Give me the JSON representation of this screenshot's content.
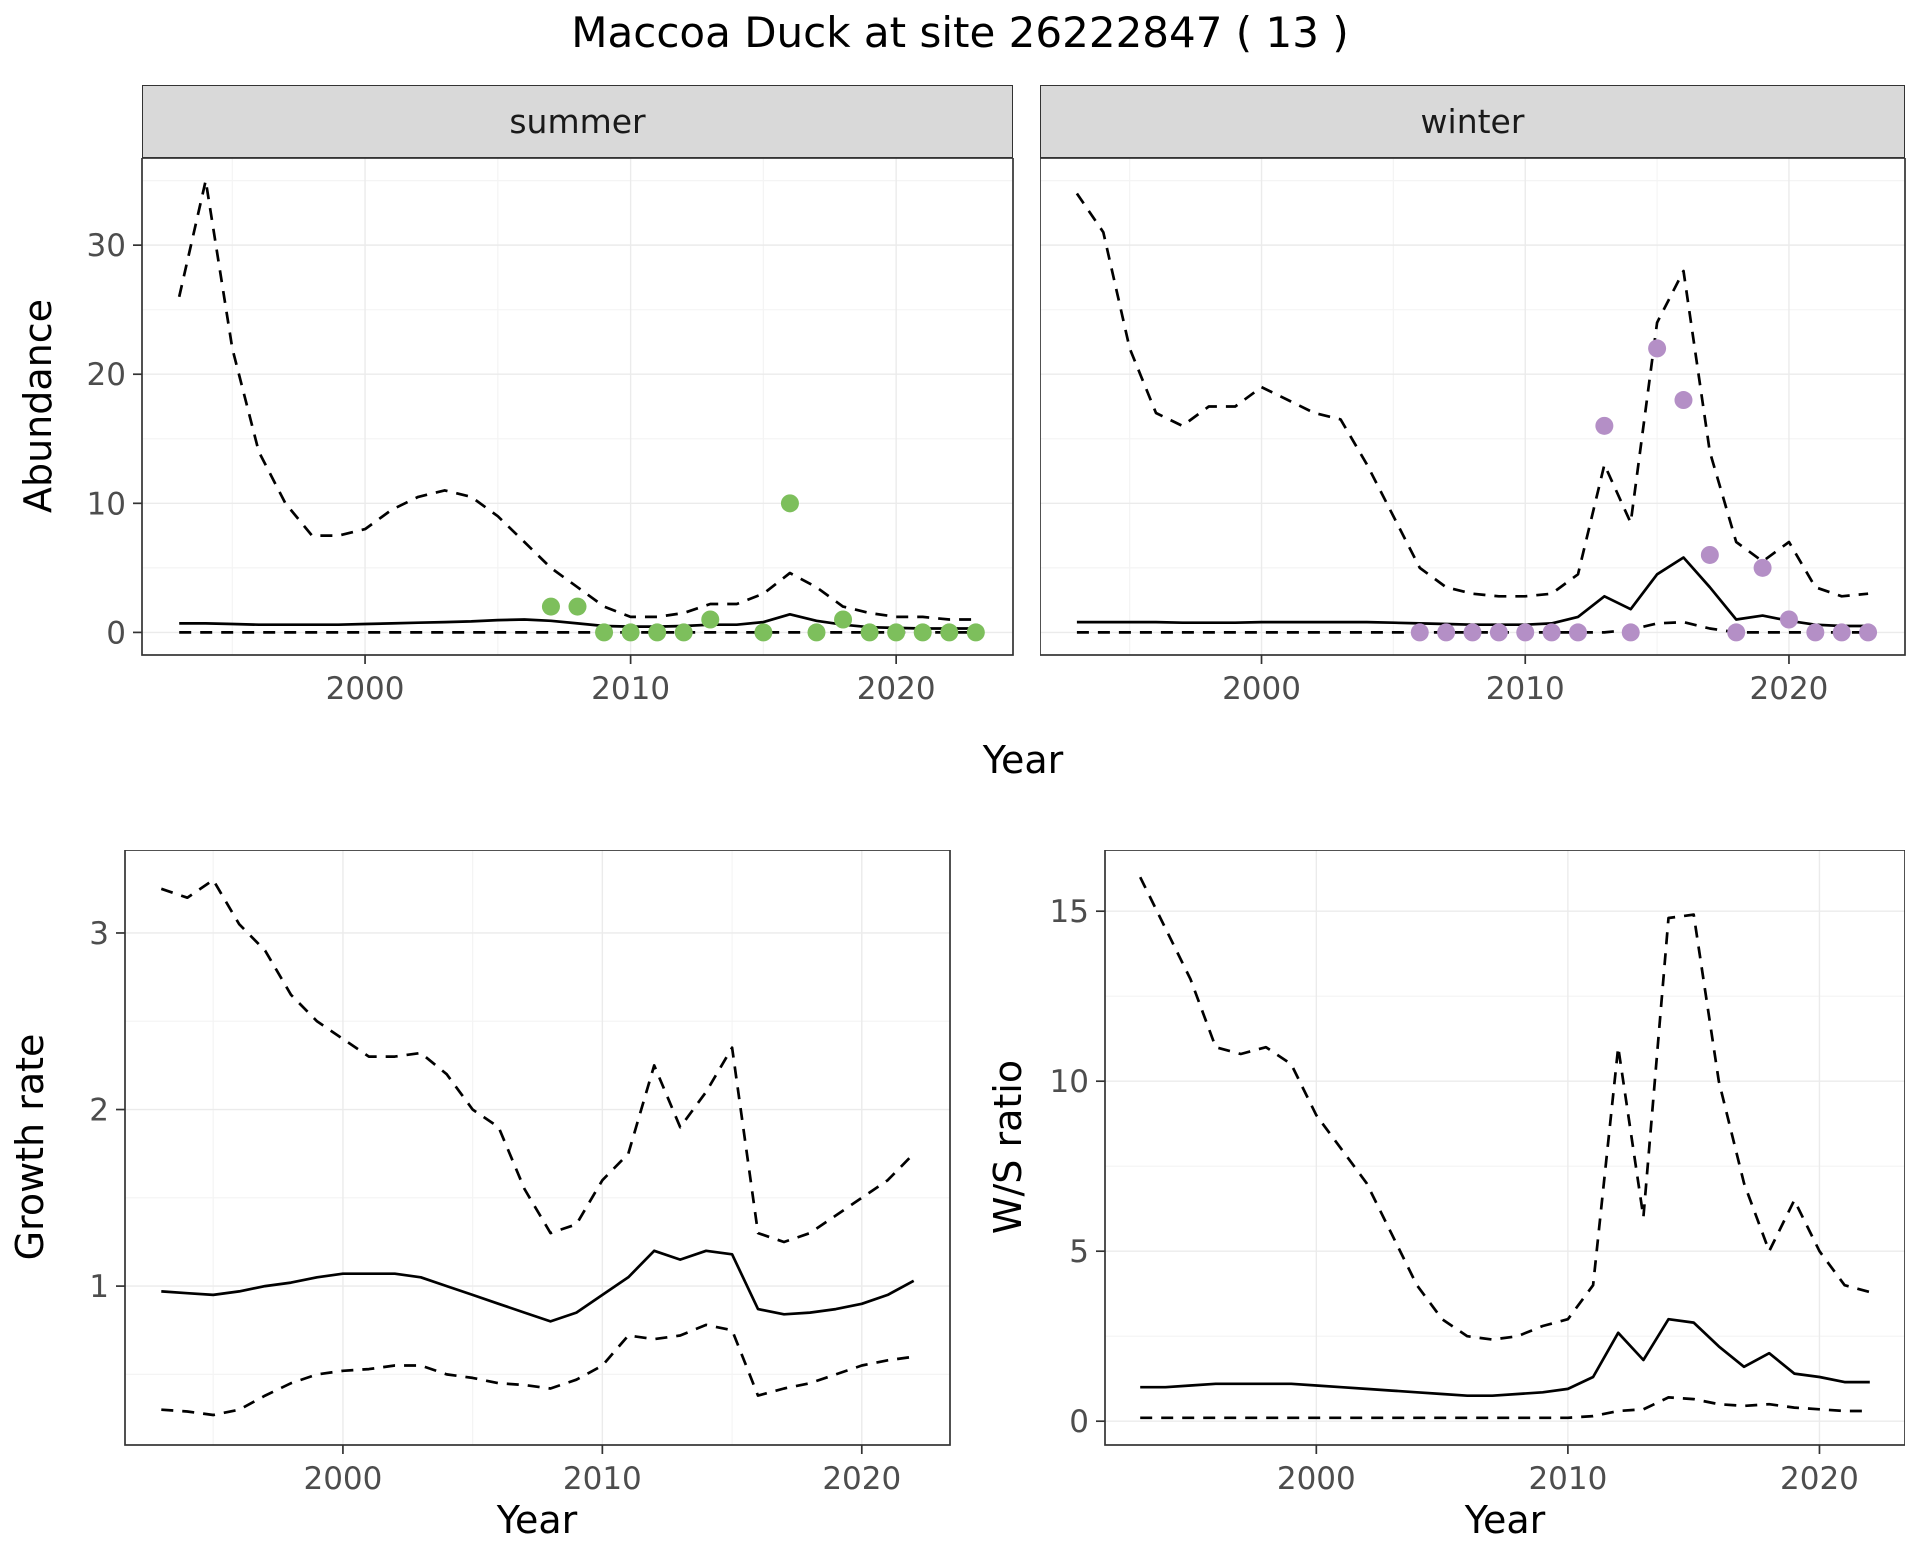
{
  "title": "Maccoa Duck at site 26222847 ( 13 )",
  "colors": {
    "summer_points": "#7dbf5c",
    "winter_points": "#b48fc6",
    "line": "#000000",
    "grid_major": "#ebebeb",
    "grid_minor": "#f4f4f4",
    "panel_border": "#333333",
    "tick_text": "#4d4d4d",
    "strip_bg": "#d9d9d9"
  },
  "top": {
    "ylabel": "Abundance",
    "xlabel": "Year",
    "facets": [
      {
        "label": "summer"
      },
      {
        "label": "winter"
      }
    ]
  },
  "bottom_left": {
    "ylabel": "Growth rate",
    "xlabel": "Year"
  },
  "bottom_right": {
    "ylabel": "W/S ratio",
    "xlabel": "Year"
  },
  "chart_data": [
    {
      "name": "summer-abundance",
      "type": "line",
      "x": [
        1993,
        1994,
        1995,
        1996,
        1997,
        1998,
        1999,
        2000,
        2001,
        2002,
        2003,
        2004,
        2005,
        2006,
        2007,
        2008,
        2009,
        2010,
        2011,
        2012,
        2013,
        2014,
        2015,
        2016,
        2017,
        2018,
        2019,
        2020,
        2021,
        2022,
        2023
      ],
      "series": [
        {
          "name": "upper_ci",
          "style": "dashed",
          "values": [
            26,
            35,
            22,
            14,
            10,
            7.5,
            7.5,
            8,
            9.5,
            10.5,
            11,
            10.5,
            9,
            7,
            5,
            3.5,
            2,
            1.2,
            1.2,
            1.5,
            2.2,
            2.2,
            3,
            4.6,
            3.5,
            2,
            1.5,
            1.2,
            1.2,
            1,
            1
          ]
        },
        {
          "name": "median",
          "style": "solid",
          "values": [
            0.7,
            0.7,
            0.65,
            0.6,
            0.6,
            0.6,
            0.6,
            0.65,
            0.7,
            0.75,
            0.8,
            0.85,
            0.95,
            1.0,
            0.9,
            0.7,
            0.5,
            0.45,
            0.45,
            0.5,
            0.6,
            0.6,
            0.8,
            1.4,
            0.9,
            0.6,
            0.4,
            0.35,
            0.3,
            0.3,
            0.3
          ]
        },
        {
          "name": "lower_ci",
          "style": "dashed",
          "values": [
            0,
            0,
            0,
            0,
            0,
            0,
            0,
            0,
            0,
            0,
            0,
            0,
            0,
            0,
            0,
            0,
            0,
            0,
            0,
            0,
            0,
            0,
            0,
            0,
            0,
            0,
            0,
            0,
            0,
            0,
            0
          ]
        }
      ],
      "points": {
        "name": "observed-counts",
        "color_key": "summer_points",
        "x": [
          2007,
          2008,
          2009,
          2010,
          2011,
          2012,
          2013,
          2015,
          2016,
          2017,
          2018,
          2019,
          2020,
          2021,
          2022,
          2023
        ],
        "y": [
          2,
          2,
          0,
          0,
          0,
          0,
          1,
          0,
          10,
          0,
          1,
          0,
          0,
          0,
          0,
          0
        ]
      },
      "xlim": [
        1991.6,
        2024.4
      ],
      "ylim": [
        -1.75,
        36.75
      ],
      "x_ticks": [
        2000,
        2010,
        2020
      ],
      "y_ticks": [
        0,
        10,
        20,
        30
      ],
      "x_minor": [
        1995,
        2005,
        2015
      ],
      "y_minor": [
        5,
        15,
        25,
        35
      ],
      "show_y_labels": true
    },
    {
      "name": "winter-abundance",
      "type": "line",
      "x": [
        1993,
        1994,
        1995,
        1996,
        1997,
        1998,
        1999,
        2000,
        2001,
        2002,
        2003,
        2004,
        2005,
        2006,
        2007,
        2008,
        2009,
        2010,
        2011,
        2012,
        2013,
        2014,
        2015,
        2016,
        2017,
        2018,
        2019,
        2020,
        2021,
        2022,
        2023
      ],
      "series": [
        {
          "name": "upper_ci",
          "style": "dashed",
          "values": [
            34,
            31,
            22,
            17,
            16,
            17.5,
            17.5,
            19,
            18,
            17,
            16.5,
            13,
            9,
            5,
            3.5,
            3,
            2.8,
            2.8,
            3,
            4.5,
            13,
            8.5,
            24,
            28,
            14,
            7,
            5.5,
            7,
            3.5,
            2.8,
            3
          ]
        },
        {
          "name": "median",
          "style": "solid",
          "values": [
            0.8,
            0.8,
            0.8,
            0.8,
            0.75,
            0.75,
            0.75,
            0.8,
            0.8,
            0.8,
            0.8,
            0.8,
            0.75,
            0.7,
            0.65,
            0.6,
            0.6,
            0.6,
            0.7,
            1.2,
            2.8,
            1.8,
            4.5,
            5.8,
            3.5,
            1.0,
            1.3,
            0.9,
            0.6,
            0.5,
            0.5
          ]
        },
        {
          "name": "lower_ci",
          "style": "dashed",
          "values": [
            0,
            0,
            0,
            0,
            0,
            0,
            0,
            0,
            0,
            0,
            0,
            0,
            0,
            0,
            0,
            0,
            0,
            0,
            0,
            0,
            0,
            0.2,
            0.7,
            0.8,
            0.3,
            0,
            0,
            0,
            0,
            0,
            0
          ]
        }
      ],
      "points": {
        "name": "observed-counts",
        "color_key": "winter_points",
        "x": [
          2006,
          2007,
          2008,
          2009,
          2010,
          2011,
          2012,
          2013,
          2014,
          2015,
          2016,
          2017,
          2018,
          2019,
          2020,
          2021,
          2022,
          2023
        ],
        "y": [
          0,
          0,
          0,
          0,
          0,
          0,
          0,
          16,
          0,
          22,
          18,
          6,
          0,
          5,
          1,
          0,
          0,
          0
        ]
      },
      "xlim": [
        1991.6,
        2024.4
      ],
      "ylim": [
        -1.75,
        36.75
      ],
      "x_ticks": [
        2000,
        2010,
        2020
      ],
      "y_ticks": [
        0,
        10,
        20,
        30
      ],
      "x_minor": [
        1995,
        2005,
        2015
      ],
      "y_minor": [
        5,
        15,
        25,
        35
      ],
      "show_y_labels": false
    },
    {
      "name": "growth-rate",
      "type": "line",
      "x": [
        1993,
        1994,
        1995,
        1996,
        1997,
        1998,
        1999,
        2000,
        2001,
        2002,
        2003,
        2004,
        2005,
        2006,
        2007,
        2008,
        2009,
        2010,
        2011,
        2012,
        2013,
        2014,
        2015,
        2016,
        2017,
        2018,
        2019,
        2020,
        2021,
        2022
      ],
      "series": [
        {
          "name": "upper_ci",
          "style": "dashed",
          "values": [
            3.25,
            3.2,
            3.3,
            3.05,
            2.9,
            2.65,
            2.5,
            2.4,
            2.3,
            2.3,
            2.32,
            2.2,
            2.0,
            1.9,
            1.55,
            1.3,
            1.35,
            1.6,
            1.75,
            2.25,
            1.9,
            2.1,
            2.35,
            1.3,
            1.25,
            1.3,
            1.4,
            1.5,
            1.6,
            1.75
          ]
        },
        {
          "name": "median",
          "style": "solid",
          "values": [
            0.97,
            0.96,
            0.95,
            0.97,
            1.0,
            1.02,
            1.05,
            1.07,
            1.07,
            1.07,
            1.05,
            1.0,
            0.95,
            0.9,
            0.85,
            0.8,
            0.85,
            0.95,
            1.05,
            1.2,
            1.15,
            1.2,
            1.18,
            0.87,
            0.84,
            0.85,
            0.87,
            0.9,
            0.95,
            1.03
          ]
        },
        {
          "name": "lower_ci",
          "style": "dashed",
          "values": [
            0.3,
            0.29,
            0.27,
            0.3,
            0.38,
            0.45,
            0.5,
            0.52,
            0.53,
            0.55,
            0.55,
            0.5,
            0.48,
            0.45,
            0.44,
            0.42,
            0.47,
            0.55,
            0.72,
            0.7,
            0.72,
            0.78,
            0.75,
            0.38,
            0.42,
            0.45,
            0.5,
            0.55,
            0.58,
            0.6
          ]
        }
      ],
      "xlim": [
        1991.6,
        2023.4
      ],
      "ylim": [
        0.1,
        3.47
      ],
      "x_ticks": [
        2000,
        2010,
        2020
      ],
      "y_ticks": [
        1,
        2,
        3
      ],
      "x_minor": [
        1995,
        2005,
        2015
      ],
      "y_minor": [
        0.5,
        1.5,
        2.5
      ],
      "show_y_labels": true
    },
    {
      "name": "ws-ratio",
      "type": "line",
      "x": [
        1993,
        1994,
        1995,
        1996,
        1997,
        1998,
        1999,
        2000,
        2001,
        2002,
        2003,
        2004,
        2005,
        2006,
        2007,
        2008,
        2009,
        2010,
        2011,
        2012,
        2013,
        2014,
        2015,
        2016,
        2017,
        2018,
        2019,
        2020,
        2021,
        2022
      ],
      "series": [
        {
          "name": "upper_ci",
          "style": "dashed",
          "values": [
            16,
            14.5,
            13,
            11,
            10.8,
            11,
            10.5,
            9,
            8,
            7,
            5.5,
            4,
            3,
            2.5,
            2.4,
            2.5,
            2.8,
            3,
            4,
            11,
            6,
            14.8,
            14.9,
            10,
            7,
            5,
            6.5,
            5,
            4,
            3.8
          ]
        },
        {
          "name": "median",
          "style": "solid",
          "values": [
            1.0,
            1.0,
            1.05,
            1.1,
            1.1,
            1.1,
            1.1,
            1.05,
            1.0,
            0.95,
            0.9,
            0.85,
            0.8,
            0.75,
            0.75,
            0.8,
            0.85,
            0.95,
            1.3,
            2.6,
            1.8,
            3.0,
            2.9,
            2.2,
            1.6,
            2.0,
            1.4,
            1.3,
            1.15,
            1.15
          ]
        },
        {
          "name": "lower_ci",
          "style": "dashed",
          "values": [
            0.1,
            0.1,
            0.1,
            0.1,
            0.1,
            0.1,
            0.1,
            0.1,
            0.1,
            0.1,
            0.1,
            0.1,
            0.1,
            0.1,
            0.1,
            0.1,
            0.1,
            0.1,
            0.15,
            0.3,
            0.35,
            0.7,
            0.65,
            0.5,
            0.45,
            0.5,
            0.4,
            0.35,
            0.3,
            0.3
          ]
        }
      ],
      "xlim": [
        1991.6,
        2023.4
      ],
      "ylim": [
        -0.7,
        16.8
      ],
      "x_ticks": [
        2000,
        2010,
        2020
      ],
      "y_ticks": [
        0,
        5,
        10,
        15
      ],
      "x_minor": [
        2.5
      ],
      "y_minor": [
        2.5,
        7.5,
        12.5
      ],
      "show_y_labels": true
    }
  ]
}
